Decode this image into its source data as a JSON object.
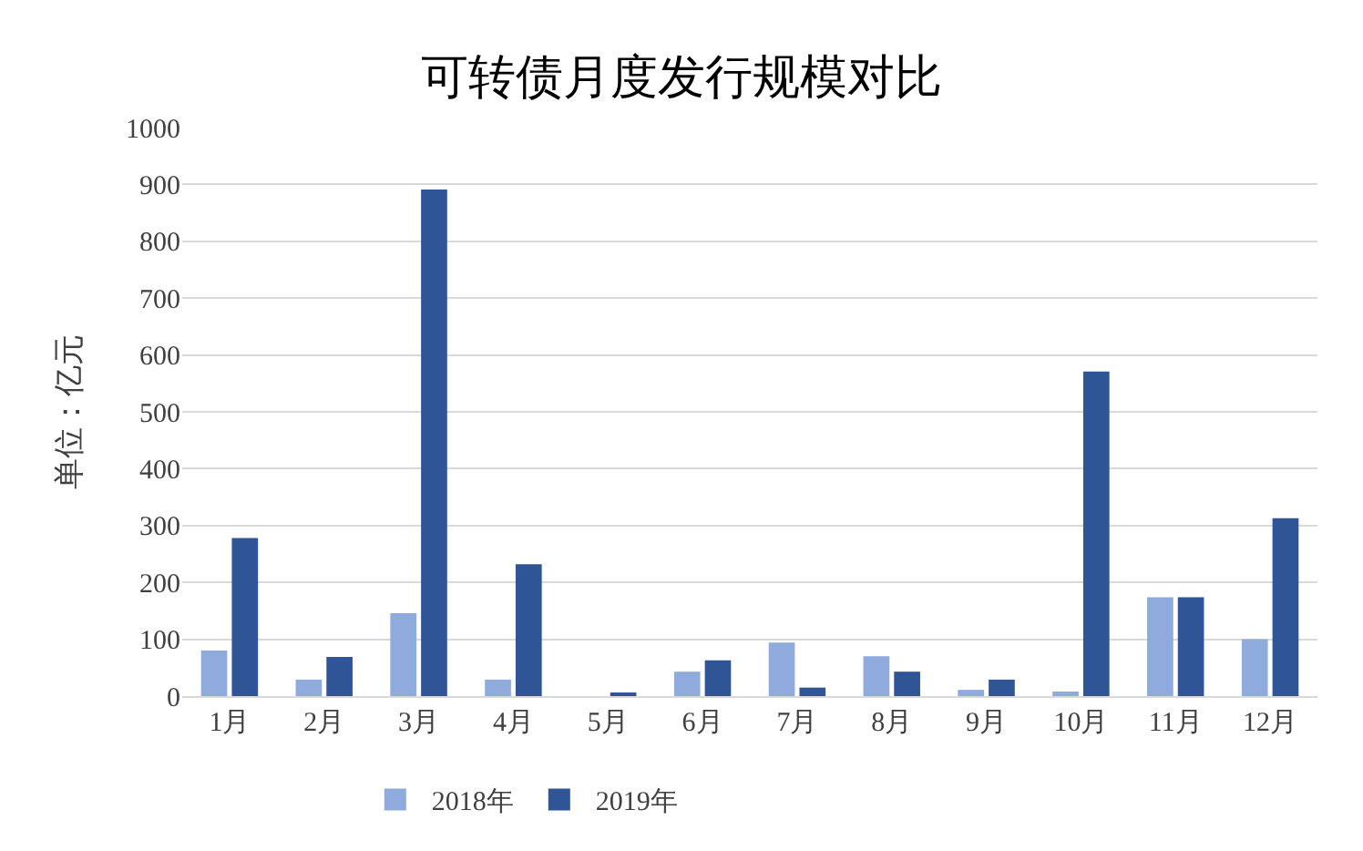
{
  "chart_data": {
    "type": "bar",
    "title": "可转债月度发行规模对比",
    "ylabel": "单位：亿元",
    "categories": [
      "1月",
      "2月",
      "3月",
      "4月",
      "5月",
      "6月",
      "7月",
      "8月",
      "9月",
      "10月",
      "11月",
      "12月"
    ],
    "series": [
      {
        "name": "2018年",
        "color": "#8faadc",
        "values": [
          80,
          29,
          146,
          29,
          0,
          43,
          94,
          70,
          11,
          8,
          174,
          100
        ]
      },
      {
        "name": "2019年",
        "color": "#2f5597",
        "values": [
          278,
          69,
          891,
          232,
          5,
          63,
          15,
          43,
          29,
          571,
          174,
          313
        ]
      }
    ],
    "ylim": [
      0,
      1000
    ],
    "yticks": [
      0,
      100,
      200,
      300,
      400,
      500,
      600,
      700,
      800,
      900,
      1000
    ],
    "grid": "y",
    "legend": "bottom"
  }
}
